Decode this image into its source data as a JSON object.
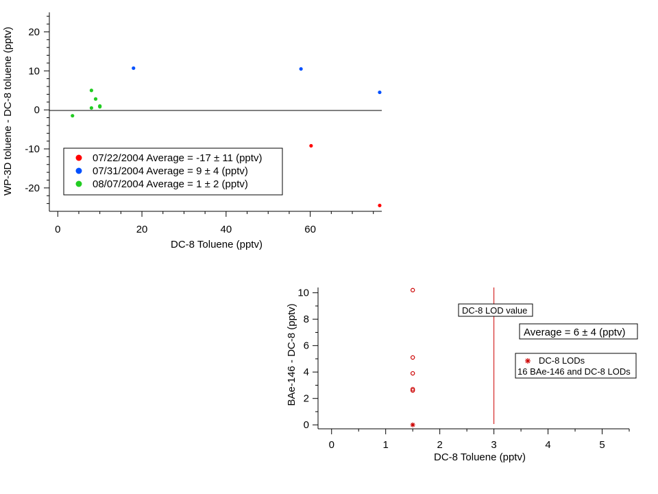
{
  "colors": {
    "red": "#ff0000",
    "blue": "#0050ff",
    "green": "#22cc22",
    "dark_red": "#cc0000",
    "axis": "#000000"
  },
  "chart_data": [
    {
      "type": "scatter",
      "title": "",
      "xlabel": "DC-8 Toluene (pptv)",
      "ylabel": "WP-3D toluene  - DC-8 toluene (pptv)",
      "xlim": [
        -2,
        77
      ],
      "ylim": [
        -26,
        25
      ],
      "xticks": [
        "0",
        "20",
        "40",
        "60"
      ],
      "yticks": [
        "-20",
        "-10",
        "0",
        "10",
        "20"
      ],
      "zero_line": true,
      "legend_position": "bottom-left",
      "series": [
        {
          "name": "07/22/2004 Average = -17 ± 11 (pptv)",
          "color": "#ff0000",
          "points": [
            {
              "x": 60.2,
              "y": -9.2
            },
            {
              "x": 76.5,
              "y": -24.5
            }
          ]
        },
        {
          "name": "07/31/2004 Average = 9 ± 4 (pptv)",
          "color": "#0050ff",
          "points": [
            {
              "x": 18,
              "y": 10.7
            },
            {
              "x": 57.8,
              "y": 10.5
            },
            {
              "x": 76.5,
              "y": 4.5
            }
          ]
        },
        {
          "name": "08/07/2004 Average = 1 ± 2 (pptv)",
          "color": "#22cc22",
          "points": [
            {
              "x": 3.5,
              "y": -1.5
            },
            {
              "x": 8,
              "y": 5
            },
            {
              "x": 9,
              "y": 2.8
            },
            {
              "x": 8,
              "y": 0.5
            },
            {
              "x": 10,
              "y": 1
            },
            {
              "x": 10,
              "y": 0.8
            }
          ]
        }
      ]
    },
    {
      "type": "scatter",
      "title": "",
      "xlabel": "DC-8 Toluene (pptv)",
      "ylabel": "BAe-146  -  DC-8 (pptv)",
      "xlim": [
        -0.25,
        5.5
      ],
      "ylim": [
        -0.3,
        10.4
      ],
      "xticks": [
        "0",
        "1",
        "2",
        "3",
        "4",
        "5"
      ],
      "yticks": [
        "0",
        "2",
        "4",
        "6",
        "8",
        "10"
      ],
      "vline_x": 3,
      "vline_label": "DC-8 LOD value",
      "average_label": "Average = 6 ± 4 (pptv)",
      "legend_position": "right",
      "legend": {
        "asterisk_label": "DC-8 LODs",
        "circle_label": "16 BAe-146 and DC-8 LODs"
      },
      "series": [
        {
          "name": "16 BAe-146 and DC-8 LODs",
          "marker": "circle",
          "color": "#cc0000",
          "points": [
            {
              "x": 1.5,
              "y": 10.2
            },
            {
              "x": 1.5,
              "y": 5.1
            },
            {
              "x": 1.5,
              "y": 3.9
            },
            {
              "x": 1.5,
              "y": 2.7
            },
            {
              "x": 1.5,
              "y": 2.6
            }
          ]
        },
        {
          "name": "DC-8 LODs",
          "marker": "asterisk",
          "color": "#cc0000",
          "points": [
            {
              "x": 1.5,
              "y": 0
            }
          ]
        }
      ]
    }
  ]
}
